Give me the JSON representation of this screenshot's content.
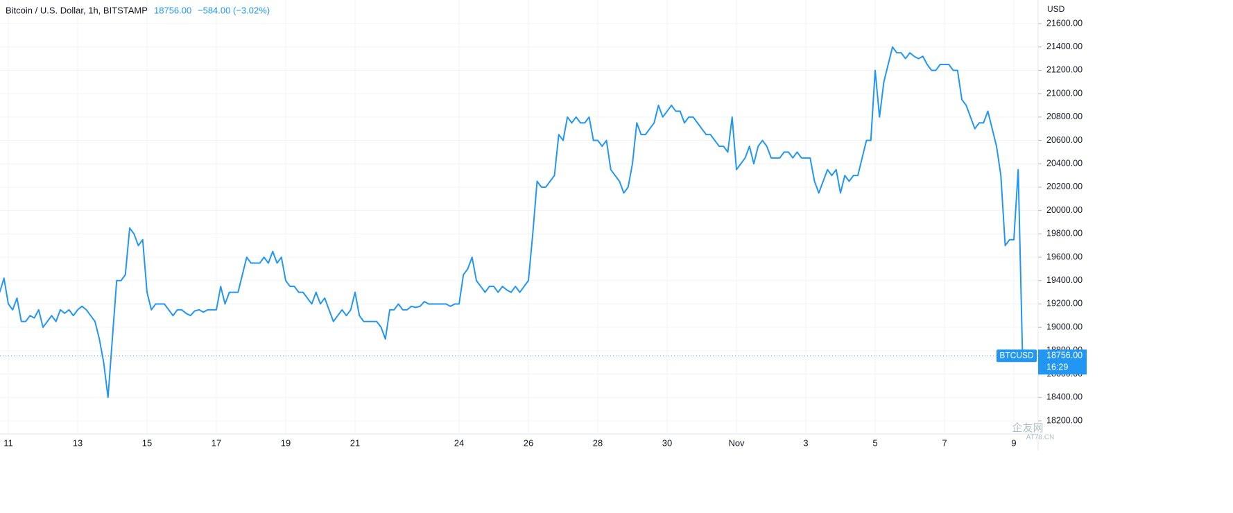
{
  "header": {
    "symbol": "Bitcoin / U.S. Dollar, 1h, BITSTAMP",
    "price": "18756.00",
    "change": "−584.00 (−3.02%)"
  },
  "axis_unit": "USD",
  "last_label": {
    "name": "BTCUSD",
    "price": "18756.00",
    "time": "16:29"
  },
  "watermark": {
    "name": "企友网",
    "site": "AT78.CN"
  },
  "chart_data": {
    "type": "line",
    "categories": [
      null,
      null,
      "11",
      null,
      null,
      null,
      null,
      null,
      null,
      null,
      null,
      null,
      null,
      null,
      null,
      null,
      null,
      null,
      "13",
      null,
      null,
      null,
      null,
      null,
      null,
      null,
      null,
      null,
      null,
      null,
      null,
      null,
      null,
      null,
      "15",
      null,
      null,
      null,
      null,
      null,
      null,
      null,
      null,
      null,
      null,
      null,
      null,
      null,
      null,
      null,
      "17",
      null,
      null,
      null,
      null,
      null,
      null,
      null,
      null,
      null,
      null,
      null,
      null,
      null,
      null,
      null,
      "19",
      null,
      null,
      null,
      null,
      null,
      null,
      null,
      null,
      null,
      null,
      null,
      null,
      null,
      null,
      null,
      "21",
      null,
      null,
      null,
      null,
      null,
      null,
      null,
      null,
      null,
      null,
      null,
      null,
      null,
      null,
      null,
      null,
      null,
      null,
      null,
      null,
      null,
      null,
      null,
      "24",
      null,
      null,
      null,
      null,
      null,
      null,
      null,
      null,
      null,
      null,
      null,
      null,
      null,
      null,
      null,
      "26",
      null,
      null,
      null,
      null,
      null,
      null,
      null,
      null,
      null,
      null,
      null,
      null,
      null,
      null,
      null,
      "28",
      null,
      null,
      null,
      null,
      null,
      null,
      null,
      null,
      null,
      null,
      null,
      null,
      null,
      null,
      null,
      "30",
      null,
      null,
      null,
      null,
      null,
      null,
      null,
      null,
      null,
      null,
      null,
      null,
      null,
      null,
      null,
      "Nov",
      null,
      null,
      null,
      null,
      null,
      null,
      null,
      null,
      null,
      null,
      null,
      null,
      null,
      null,
      null,
      "3",
      null,
      null,
      null,
      null,
      null,
      null,
      null,
      null,
      null,
      null,
      null,
      null,
      null,
      null,
      null,
      "5",
      null,
      null,
      null,
      null,
      null,
      null,
      null,
      null,
      null,
      null,
      null,
      null,
      null,
      null,
      null,
      "7",
      null,
      null,
      null,
      null,
      null,
      null,
      null,
      null,
      null,
      null,
      null,
      null,
      null,
      null,
      null,
      "9",
      null,
      null
    ],
    "series": [
      {
        "name": "BTCUSD",
        "color": "#2196f3",
        "values": [
          19300,
          19420,
          19200,
          19150,
          19250,
          19050,
          19050,
          19100,
          19080,
          19150,
          19000,
          19050,
          19100,
          19050,
          19150,
          19120,
          19150,
          19100,
          19150,
          19180,
          19150,
          19100,
          19050,
          18900,
          18700,
          18400,
          18900,
          19400,
          19400,
          19450,
          19850,
          19800,
          19700,
          19750,
          19300,
          19150,
          19200,
          19200,
          19200,
          19150,
          19100,
          19150,
          19150,
          19120,
          19100,
          19140,
          19150,
          19130,
          19150,
          19150,
          19150,
          19350,
          19200,
          19300,
          19300,
          19300,
          19450,
          19600,
          19550,
          19550,
          19550,
          19600,
          19550,
          19650,
          19550,
          19600,
          19400,
          19350,
          19350,
          19300,
          19300,
          19250,
          19200,
          19300,
          19200,
          19250,
          19150,
          19050,
          19100,
          19150,
          19100,
          19150,
          19300,
          19100,
          19050,
          19050,
          19050,
          19050,
          19000,
          18900,
          19150,
          19150,
          19200,
          19150,
          19150,
          19180,
          19170,
          19180,
          19220,
          19200,
          19200,
          19200,
          19200,
          19200,
          19180,
          19200,
          19200,
          19450,
          19500,
          19600,
          19400,
          19350,
          19300,
          19350,
          19350,
          19300,
          19350,
          19320,
          19300,
          19350,
          19300,
          19350,
          19400,
          19800,
          20250,
          20200,
          20200,
          20250,
          20300,
          20650,
          20600,
          20800,
          20750,
          20800,
          20750,
          20750,
          20800,
          20600,
          20600,
          20550,
          20600,
          20350,
          20300,
          20250,
          20150,
          20200,
          20400,
          20750,
          20650,
          20650,
          20700,
          20750,
          20900,
          20800,
          20850,
          20900,
          20850,
          20850,
          20750,
          20800,
          20800,
          20750,
          20700,
          20650,
          20650,
          20600,
          20550,
          20550,
          20500,
          20800,
          20350,
          20400,
          20450,
          20550,
          20400,
          20550,
          20600,
          20550,
          20450,
          20450,
          20450,
          20500,
          20500,
          20450,
          20500,
          20450,
          20450,
          20450,
          20250,
          20150,
          20250,
          20350,
          20300,
          20350,
          20150,
          20300,
          20250,
          20300,
          20300,
          20450,
          20600,
          20600,
          21200,
          20800,
          21100,
          21250,
          21400,
          21350,
          21350,
          21300,
          21350,
          21320,
          21300,
          21320,
          21250,
          21200,
          21200,
          21250,
          21250,
          21250,
          21200,
          21200,
          20950,
          20900,
          20800,
          20700,
          20750,
          20750,
          20850,
          20700,
          20550,
          20300,
          19700,
          19750,
          19750,
          20350,
          18756
        ]
      }
    ],
    "ylim": [
      18087,
      21802
    ],
    "yticks": [
      {
        "value": 18200,
        "label": "18200.00"
      },
      {
        "value": 18400,
        "label": "18400.00"
      },
      {
        "value": 18600,
        "label": "18600.00"
      },
      {
        "value": 18800,
        "label": "18800.00"
      },
      {
        "value": 19000,
        "label": "19000.00"
      },
      {
        "value": 19200,
        "label": "19200.00"
      },
      {
        "value": 19400,
        "label": "19400.00"
      },
      {
        "value": 19600,
        "label": "19600.00"
      },
      {
        "value": 19800,
        "label": "19800.00"
      },
      {
        "value": 20000,
        "label": "20000.00"
      },
      {
        "value": 20200,
        "label": "20200.00"
      },
      {
        "value": 20400,
        "label": "20400.00"
      },
      {
        "value": 20600,
        "label": "20600.00"
      },
      {
        "value": 20800,
        "label": "20800.00"
      },
      {
        "value": 21000,
        "label": "21000.00"
      },
      {
        "value": 21200,
        "label": "21200.00"
      },
      {
        "value": 21400,
        "label": "21400.00"
      },
      {
        "value": 21600,
        "label": "21600.00"
      }
    ],
    "grid": true
  }
}
